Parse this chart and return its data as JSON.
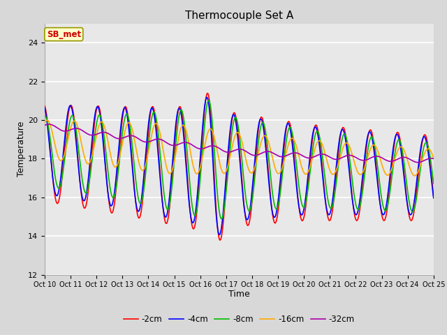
{
  "title": "Thermocouple Set A",
  "xlabel": "Time",
  "ylabel": "Temperature",
  "ylim": [
    12,
    25
  ],
  "xlim": [
    0,
    15
  ],
  "xtick_labels": [
    "Oct 10",
    "Oct 11",
    "Oct 12",
    "Oct 13",
    "Oct 14",
    "Oct 15",
    "Oct 16",
    "Oct 17",
    "Oct 18",
    "Oct 19",
    "Oct 20",
    "Oct 21",
    "Oct 22",
    "Oct 23",
    "Oct 24",
    "Oct 25"
  ],
  "ytick_values": [
    12,
    14,
    16,
    18,
    20,
    22,
    24
  ],
  "series_labels": [
    "-2cm",
    "-4cm",
    "-8cm",
    "-16cm",
    "-32cm"
  ],
  "series_colors": [
    "#ff0000",
    "#0000ff",
    "#00bb00",
    "#ffaa00",
    "#aa00aa"
  ],
  "annotation_text": "SB_met",
  "annotation_color": "#cc0000",
  "annotation_bg": "#ffffcc",
  "fig_bg_color": "#d8d8d8",
  "plot_bg_color": "#e8e8e8",
  "line_width": 1.2
}
